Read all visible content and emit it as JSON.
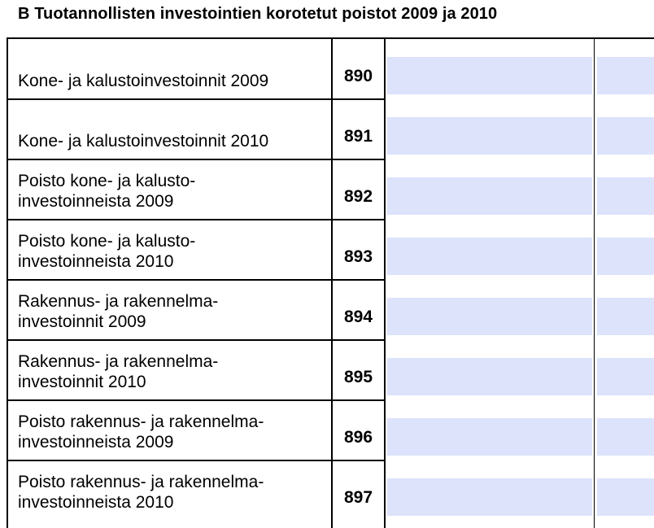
{
  "title": "B Tuotannollisten investointien korotetut poistot 2009 ja 2010",
  "rows": [
    {
      "code": "890",
      "lines": [
        "Kone- ja kalustoinvestoinnit 2009"
      ],
      "value_a": "",
      "value_b": ""
    },
    {
      "code": "891",
      "lines": [
        "Kone- ja kalustoinvestoinnit 2010"
      ],
      "value_a": "",
      "value_b": ""
    },
    {
      "code": "892",
      "lines": [
        "Poisto kone- ja kalusto-",
        "investoinneista 2009"
      ],
      "value_a": "",
      "value_b": ""
    },
    {
      "code": "893",
      "lines": [
        "Poisto kone- ja kalusto-",
        "investoinneista 2010"
      ],
      "value_a": "",
      "value_b": ""
    },
    {
      "code": "894",
      "lines": [
        "Rakennus- ja rakennelma-",
        "investoinnit 2009"
      ],
      "value_a": "",
      "value_b": ""
    },
    {
      "code": "895",
      "lines": [
        "Rakennus- ja rakennelma-",
        "investoinnit 2010"
      ],
      "value_a": "",
      "value_b": ""
    },
    {
      "code": "896",
      "lines": [
        "Poisto rakennus- ja rakennelma-",
        "investoinneista 2009"
      ],
      "value_a": "",
      "value_b": ""
    },
    {
      "code": "897",
      "lines": [
        "Poisto rakennus- ja rakennelma-",
        "investoinneista 2010"
      ],
      "value_a": "",
      "value_b": ""
    }
  ]
}
